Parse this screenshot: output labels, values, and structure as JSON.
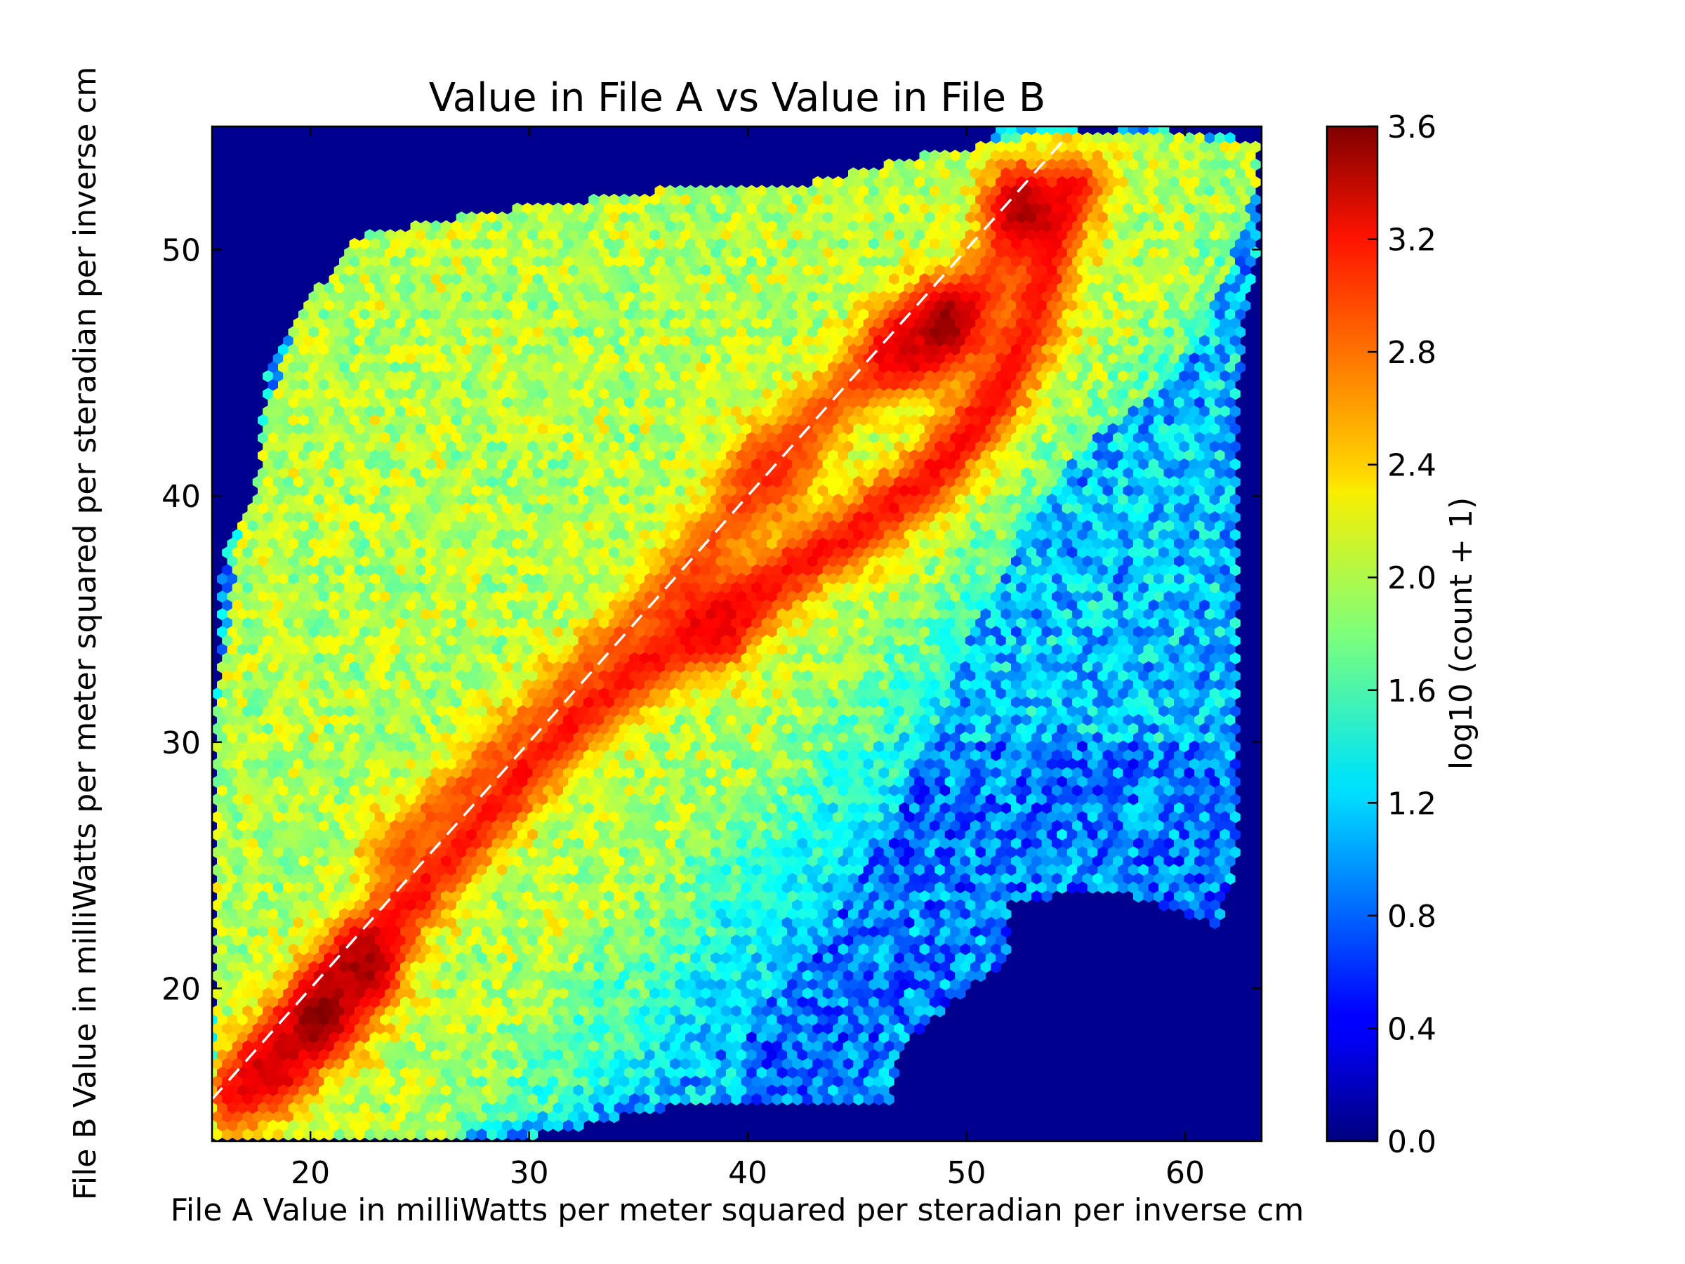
{
  "chart_data": {
    "type": "heatmap",
    "subtype": "hexbin",
    "title": "Value in File A vs Value in File B",
    "xlabel": "File A Value in milliWatts per meter squared per steradian per inverse cm",
    "ylabel": "File B Value in milliWatts per meter squared per steradian per inverse cm",
    "xlim": [
      15.5,
      63.5
    ],
    "ylim": [
      13.8,
      55.0
    ],
    "xticks": [
      20,
      30,
      40,
      50,
      60
    ],
    "yticks": [
      20,
      30,
      40,
      50
    ],
    "colorbar": {
      "label": "log10 (count + 1)",
      "range": [
        0.0,
        3.6
      ],
      "ticks": [
        "0.0",
        "0.4",
        "0.8",
        "1.2",
        "1.6",
        "2.0",
        "2.4",
        "2.8",
        "3.2",
        "3.6"
      ],
      "colormap": "jet"
    },
    "background_color": "#00008f",
    "reference_line": {
      "style": "dashed",
      "color": "#ffffff",
      "from": [
        15.5,
        15.5
      ],
      "to": [
        54.5,
        54.5
      ]
    },
    "density_ridges": [
      {
        "points": [
          [
            16.5,
            15.6
          ],
          [
            19,
            17.5
          ],
          [
            21,
            19.8
          ],
          [
            23,
            22
          ],
          [
            25.5,
            24.5
          ],
          [
            28,
            27
          ],
          [
            30.5,
            29.5
          ],
          [
            33,
            31.5
          ],
          [
            35.5,
            33.3
          ],
          [
            38.5,
            34.8
          ],
          [
            42,
            37
          ],
          [
            45,
            38.6
          ],
          [
            48,
            40.5
          ],
          [
            51,
            43.5
          ],
          [
            53,
            47
          ],
          [
            54,
            51
          ],
          [
            55,
            52.5
          ]
        ],
        "level": 3.1
      },
      {
        "points": [
          [
            24,
            25.5
          ],
          [
            28,
            28.5
          ],
          [
            32,
            32
          ],
          [
            36,
            35.5
          ],
          [
            40,
            40
          ],
          [
            43,
            43
          ],
          [
            46,
            45.5
          ],
          [
            48.5,
            46.5
          ],
          [
            51,
            48.5
          ],
          [
            53,
            51
          ]
        ],
        "level": 2.85
      }
    ],
    "hot_spots": [
      {
        "x": 20.5,
        "y": 18.8,
        "level": 3.55
      },
      {
        "x": 22.5,
        "y": 20.8,
        "level": 3.45
      },
      {
        "x": 18.2,
        "y": 16.8,
        "level": 3.3
      },
      {
        "x": 38.5,
        "y": 34.8,
        "level": 3.2
      },
      {
        "x": 49.0,
        "y": 47.0,
        "level": 3.5
      },
      {
        "x": 47.2,
        "y": 46.0,
        "level": 3.3
      },
      {
        "x": 52.5,
        "y": 51.8,
        "level": 3.45
      },
      {
        "x": 41.0,
        "y": 41.0,
        "level": 3.0
      }
    ]
  }
}
